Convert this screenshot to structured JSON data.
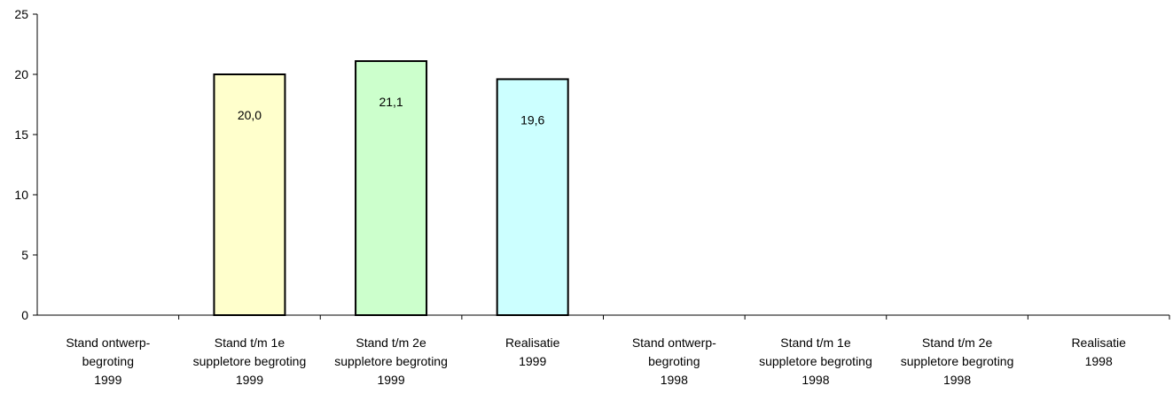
{
  "chart_data": {
    "type": "bar",
    "title": "",
    "xlabel": "",
    "ylabel": "",
    "ylim": [
      0,
      25
    ],
    "yticks": [
      0,
      5,
      10,
      15,
      20,
      25
    ],
    "grid": false,
    "categories": [
      [
        "Stand ontwerp-",
        "begroting",
        "1999"
      ],
      [
        "Stand t/m 1e",
        "suppletore begroting",
        "1999"
      ],
      [
        "Stand t/m 2e",
        "suppletore begroting",
        "1999"
      ],
      [
        "Realisatie",
        "1999"
      ],
      [
        "Stand ontwerp-",
        "begroting",
        "1998"
      ],
      [
        "Stand t/m 1e",
        "suppletore begroting",
        "1998"
      ],
      [
        "Stand t/m 2e",
        "suppletore begroting",
        "1998"
      ],
      [
        "Realisatie",
        "1998"
      ]
    ],
    "values": [
      null,
      20.0,
      21.1,
      19.6,
      null,
      null,
      null,
      null
    ],
    "data_labels": [
      "",
      "20,0",
      "21,1",
      "19,6",
      "",
      "",
      "",
      ""
    ],
    "colors": [
      "#FFFFCC",
      "#FFFFCC",
      "#CCFFCC",
      "#CCFFFF",
      "#FFFFCC",
      "#FFFFCC",
      "#CCFFCC",
      "#CCFFFF"
    ]
  }
}
